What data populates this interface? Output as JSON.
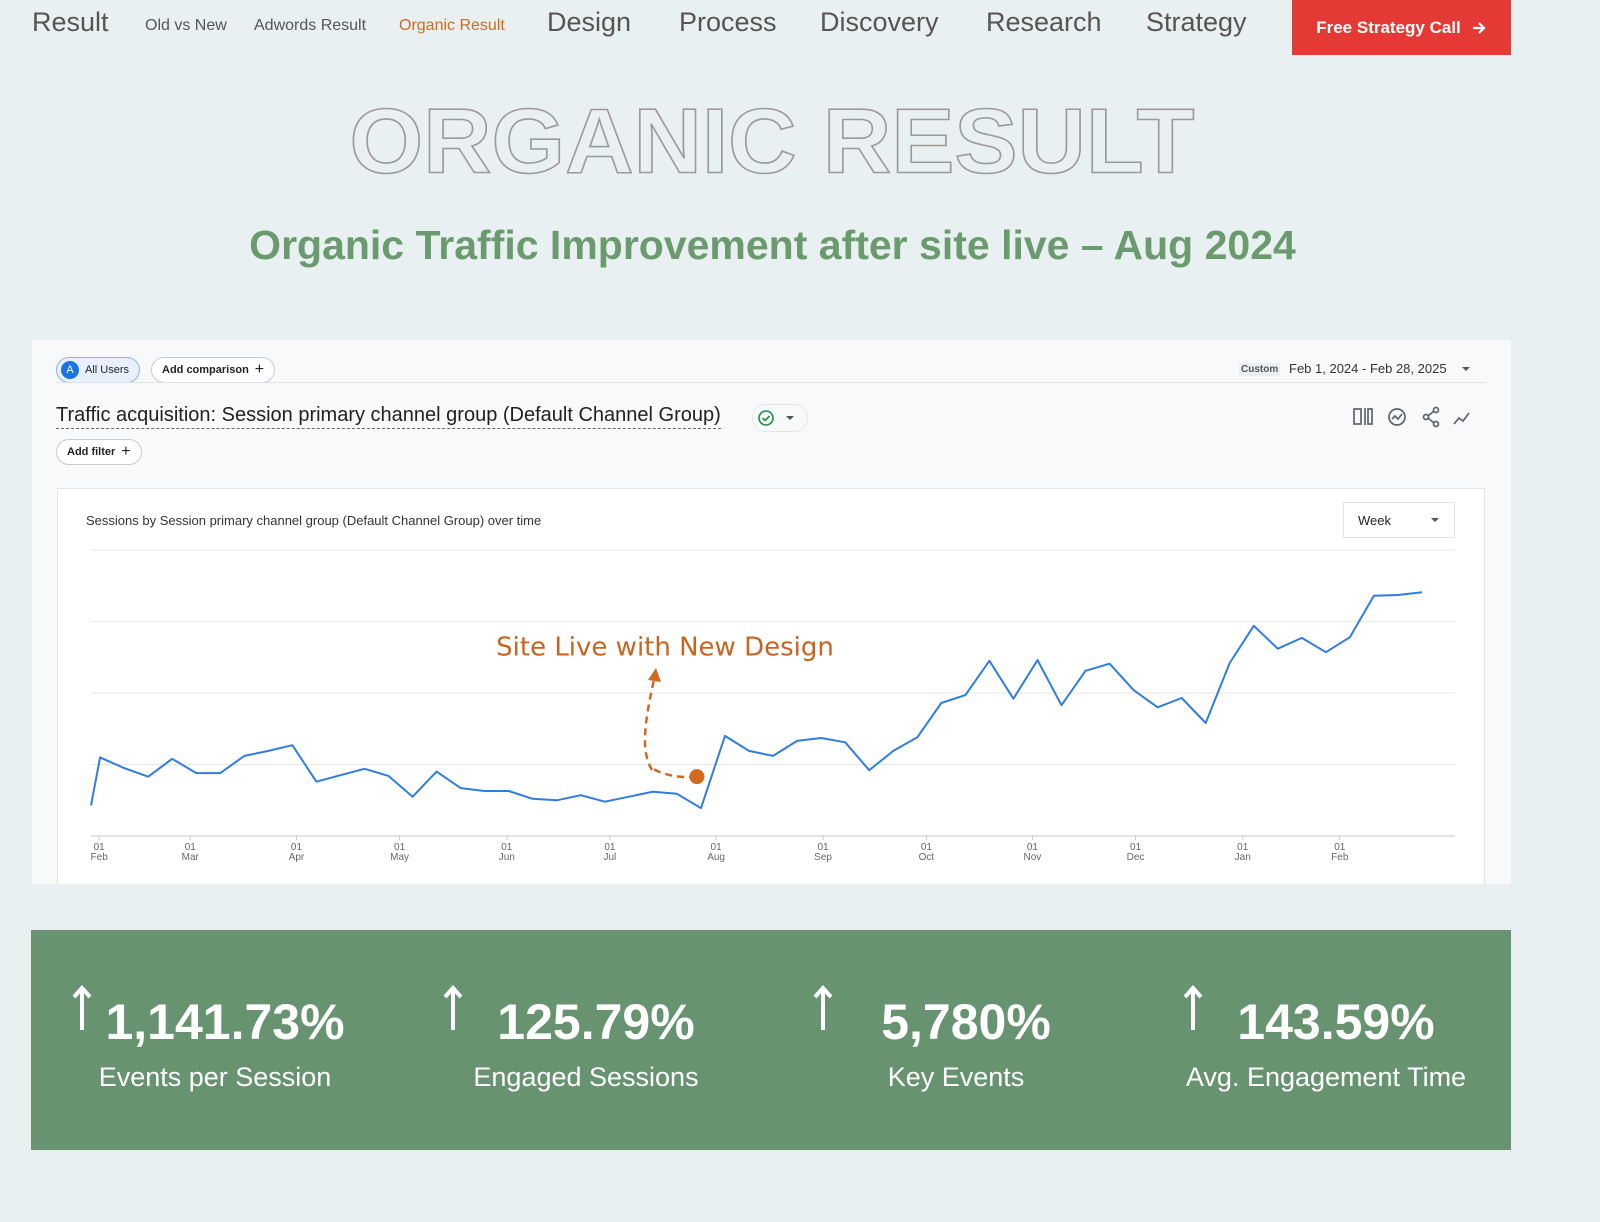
{
  "nav": [
    "Result",
    "Old vs New",
    "Adwords Result",
    "Organic Result",
    "Design",
    "Process",
    "Discovery",
    "Research",
    "Strategy"
  ],
  "cta": "Free Strategy Call",
  "hero": {
    "outline": "ORGANIC RESULT",
    "heading": "Organic Traffic Improvement after site live – Aug 2024"
  },
  "report": {
    "segment_badge": "A",
    "segment": "All Users",
    "add_comparison": "Add comparison",
    "range_kind": "Custom",
    "range": "Feb 1, 2024 - Feb 28, 2025",
    "title": "Traffic acquisition: Session primary channel group (Default Channel Group)",
    "add_filter": "Add filter",
    "interval": "Week"
  },
  "chart_data": {
    "type": "line",
    "title": "Sessions by Session primary channel group (Default Channel Group) over time",
    "annotation": "Site Live with New Design",
    "color": "#2f7de1",
    "x": [
      -0.38,
      0,
      1,
      2,
      3,
      4,
      5,
      6,
      7,
      8,
      9,
      10,
      11,
      12,
      13,
      14,
      15,
      16,
      17,
      18,
      19,
      20,
      21,
      22,
      23,
      24,
      25,
      26,
      27,
      28,
      29,
      30,
      31,
      32,
      33,
      34,
      35,
      36,
      37,
      38,
      39,
      40,
      41,
      42,
      43,
      44,
      45,
      46,
      47,
      48,
      49,
      50,
      51,
      52,
      53,
      54,
      55
    ],
    "values": [
      0.43,
      1.1,
      0.95,
      0.83,
      1.08,
      0.88,
      0.88,
      1.12,
      1.19,
      1.27,
      0.76,
      0.85,
      0.94,
      0.84,
      0.55,
      0.9,
      0.67,
      0.63,
      0.63,
      0.52,
      0.5,
      0.57,
      0.48,
      0.55,
      0.62,
      0.59,
      0.39,
      1.4,
      1.19,
      1.12,
      1.33,
      1.37,
      1.31,
      0.92,
      1.19,
      1.38,
      1.86,
      1.97,
      2.45,
      1.92,
      2.46,
      1.83,
      2.31,
      2.41,
      2.04,
      1.8,
      1.93,
      1.58,
      2.42,
      2.94,
      2.62,
      2.77,
      2.57,
      2.78,
      3.36,
      3.37,
      3.41
    ],
    "xlim": [
      -0.38,
      55
    ],
    "xticks": [
      {
        "value": -0.04,
        "label": "01 Feb"
      },
      {
        "value": 3.75,
        "label": "01 Mar"
      },
      {
        "value": 8.17,
        "label": "01 Apr"
      },
      {
        "value": 12.46,
        "label": "01 May"
      },
      {
        "value": 16.92,
        "label": "01 Jun"
      },
      {
        "value": 21.21,
        "label": "01 Jul"
      },
      {
        "value": 25.63,
        "label": "01 Aug"
      },
      {
        "value": 30.08,
        "label": "01 Sep"
      },
      {
        "value": 34.38,
        "label": "01 Oct"
      },
      {
        "value": 38.79,
        "label": "01 Nov"
      },
      {
        "value": 43.08,
        "label": "01 Dec"
      },
      {
        "value": 47.54,
        "label": "01 Jan"
      },
      {
        "value": 51.58,
        "label": "01 Feb"
      }
    ],
    "ylim": [
      0,
      4
    ],
    "yticks": [
      0,
      1,
      2,
      3,
      4
    ],
    "grid": true,
    "marker": {
      "x": 24.83,
      "y": 0.83,
      "color": "#d2691e"
    }
  },
  "stats": [
    {
      "value": "1,141.73%",
      "label": "Events per Session"
    },
    {
      "value": "125.79%",
      "label": "Engaged Sessions"
    },
    {
      "value": "5,780%",
      "label": "Key Events"
    },
    {
      "value": "143.59%",
      "label": "Avg. Engagement Time"
    }
  ]
}
